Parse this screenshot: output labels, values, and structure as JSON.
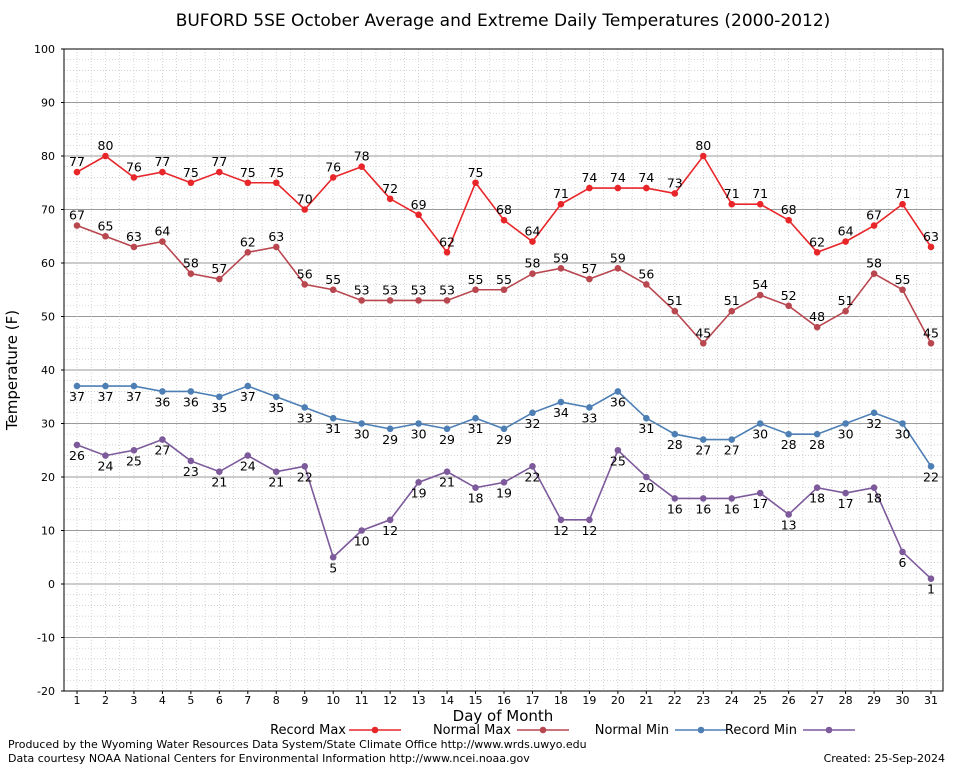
{
  "chart_data": {
    "type": "line",
    "title": "BUFORD 5SE October Average and Extreme Daily Temperatures (2000-2012)",
    "xlabel": "Day of Month",
    "ylabel": "Temperature (F)",
    "xlim": [
      1,
      31
    ],
    "ylim": [
      -20,
      100
    ],
    "y_ticks": [
      -20,
      -10,
      0,
      10,
      20,
      30,
      40,
      50,
      60,
      70,
      80,
      90,
      100
    ],
    "grid": true,
    "x": [
      1,
      2,
      3,
      4,
      5,
      6,
      7,
      8,
      9,
      10,
      11,
      12,
      13,
      14,
      15,
      16,
      17,
      18,
      19,
      20,
      21,
      22,
      23,
      24,
      25,
      26,
      27,
      28,
      29,
      30,
      31
    ],
    "series": [
      {
        "name": "Record Max",
        "color": "#e8262a",
        "label_position": "above",
        "values": [
          77,
          80,
          76,
          77,
          75,
          77,
          75,
          75,
          70,
          76,
          78,
          72,
          69,
          62,
          75,
          68,
          64,
          71,
          74,
          74,
          74,
          73,
          80,
          71,
          71,
          68,
          62,
          64,
          67,
          71,
          63
        ]
      },
      {
        "name": "Normal Max",
        "color": "#b94750",
        "label_position": "above",
        "values": [
          67,
          65,
          63,
          64,
          58,
          57,
          62,
          63,
          56,
          55,
          53,
          53,
          53,
          53,
          55,
          55,
          58,
          59,
          57,
          59,
          56,
          51,
          45,
          51,
          54,
          52,
          48,
          51,
          58,
          55,
          45
        ]
      },
      {
        "name": "Normal Min",
        "color": "#4d7fb5",
        "label_position": "below",
        "values": [
          37,
          37,
          37,
          36,
          36,
          35,
          37,
          35,
          33,
          31,
          30,
          29,
          30,
          29,
          31,
          29,
          32,
          34,
          33,
          36,
          31,
          28,
          27,
          27,
          30,
          28,
          28,
          30,
          32,
          30,
          22
        ]
      },
      {
        "name": "Record Min",
        "color": "#7d5a9b",
        "label_position": "below",
        "values": [
          26,
          24,
          25,
          27,
          23,
          21,
          24,
          21,
          22,
          5,
          10,
          12,
          19,
          21,
          18,
          19,
          22,
          12,
          12,
          25,
          20,
          16,
          16,
          16,
          17,
          13,
          18,
          17,
          18,
          6,
          1
        ]
      }
    ],
    "legend_position": "bottom"
  },
  "footer": {
    "line1": "Produced by the Wyoming Water Resources Data System/State Climate Office http://www.wrds.uwyo.edu",
    "line2": "Data courtesy NOAA National Centers for Environmental Information http://www.ncei.noaa.gov",
    "created": "Created:  25-Sep-2024"
  }
}
